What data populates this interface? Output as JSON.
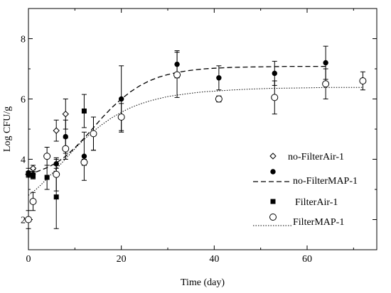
{
  "chart_data": {
    "type": "scatter",
    "xlabel": "Time (day)",
    "ylabel": "Log CFU/g",
    "xlim": [
      0,
      75
    ],
    "ylim": [
      1,
      9
    ],
    "xticks": [
      0,
      20,
      40,
      60
    ],
    "yticks": [
      2,
      4,
      6,
      8
    ],
    "grid": false,
    "legend_position": "lower-right",
    "series": [
      {
        "name": "no-FilterAir-1",
        "marker": "diamond-open",
        "points": [
          {
            "x": 0,
            "y": 3.5,
            "err": 0.1
          },
          {
            "x": 1,
            "y": 3.7,
            "err": 0.1
          },
          {
            "x": 6,
            "y": 4.95,
            "err": 0.35
          },
          {
            "x": 8,
            "y": 5.5,
            "err": 0.5
          },
          {
            "x": 14,
            "y": 4.85,
            "err": 0.55
          }
        ]
      },
      {
        "name": "no-FilterMAP-1",
        "marker": "circle-filled",
        "points": [
          {
            "x": 0,
            "y": 3.55,
            "err": 0.15
          },
          {
            "x": 1,
            "y": 3.5,
            "err": 0.15
          },
          {
            "x": 6,
            "y": 3.85,
            "err": 0.15
          },
          {
            "x": 8,
            "y": 4.75,
            "err": 0.55
          },
          {
            "x": 12,
            "y": 4.1,
            "err": 0.8
          },
          {
            "x": 20,
            "y": 6.0,
            "err": 1.1
          },
          {
            "x": 32,
            "y": 7.15,
            "err": 0.45
          },
          {
            "x": 41,
            "y": 6.7,
            "err": 0.4
          },
          {
            "x": 53,
            "y": 6.85,
            "err": 0.4
          },
          {
            "x": 64,
            "y": 7.2,
            "err": 0.55
          }
        ]
      },
      {
        "name": "FilterAir-1",
        "marker": "square-filled",
        "points": [
          {
            "x": 0,
            "y": 3.5,
            "err": 0.1
          },
          {
            "x": 1,
            "y": 3.45,
            "err": 0.1
          },
          {
            "x": 4,
            "y": 3.4,
            "err": 0.4
          },
          {
            "x": 6,
            "y": 2.75,
            "err": 1.05
          },
          {
            "x": 12,
            "y": 5.6,
            "err": 0.55
          }
        ]
      },
      {
        "name": "FilterMAP-1",
        "marker": "circle-open",
        "points": [
          {
            "x": 0,
            "y": 2.0,
            "err": 0.3
          },
          {
            "x": 1,
            "y": 2.6,
            "err": 0.3
          },
          {
            "x": 4,
            "y": 4.1,
            "err": 0.3
          },
          {
            "x": 6,
            "y": 3.5,
            "err": 0.55
          },
          {
            "x": 8,
            "y": 4.35,
            "err": 0.35
          },
          {
            "x": 12,
            "y": 3.9,
            "err": 0.1
          },
          {
            "x": 14,
            "y": 4.85,
            "err": 0.55
          },
          {
            "x": 20,
            "y": 5.4,
            "err": 0.45
          },
          {
            "x": 32,
            "y": 6.8,
            "err": 0.75
          },
          {
            "x": 41,
            "y": 6.0,
            "err": 0.1
          },
          {
            "x": 53,
            "y": 6.05,
            "err": 0.55
          },
          {
            "x": 64,
            "y": 6.5,
            "err": 0.5
          },
          {
            "x": 72,
            "y": 6.6,
            "err": 0.3
          }
        ]
      }
    ],
    "fit_curves": [
      {
        "name": "no-FilterMAP-1",
        "line_style": "dashed",
        "x": [
          0,
          2,
          4,
          6,
          8,
          10,
          12,
          14,
          16,
          18,
          20,
          22,
          24,
          26,
          28,
          30,
          32,
          34,
          36,
          38,
          40,
          44,
          48,
          52,
          56,
          60,
          64
        ],
        "y": [
          3.5,
          3.6,
          3.72,
          3.88,
          4.1,
          4.38,
          4.7,
          5.05,
          5.4,
          5.72,
          6.0,
          6.24,
          6.44,
          6.6,
          6.72,
          6.81,
          6.88,
          6.93,
          6.97,
          7.0,
          7.02,
          7.05,
          7.06,
          7.07,
          7.08,
          7.08,
          7.08
        ]
      },
      {
        "name": "FilterMAP-1",
        "line_style": "dotted",
        "x": [
          0,
          2,
          4,
          6,
          8,
          10,
          12,
          14,
          16,
          18,
          20,
          22,
          24,
          26,
          28,
          30,
          32,
          34,
          36,
          38,
          40,
          44,
          48,
          52,
          56,
          60,
          64,
          68,
          72
        ],
        "y": [
          2.8,
          3.05,
          3.35,
          3.68,
          4.02,
          4.35,
          4.66,
          4.93,
          5.17,
          5.38,
          5.56,
          5.71,
          5.83,
          5.93,
          6.01,
          6.08,
          6.13,
          6.17,
          6.21,
          6.24,
          6.26,
          6.3,
          6.33,
          6.35,
          6.36,
          6.37,
          6.38,
          6.38,
          6.38
        ]
      }
    ]
  }
}
